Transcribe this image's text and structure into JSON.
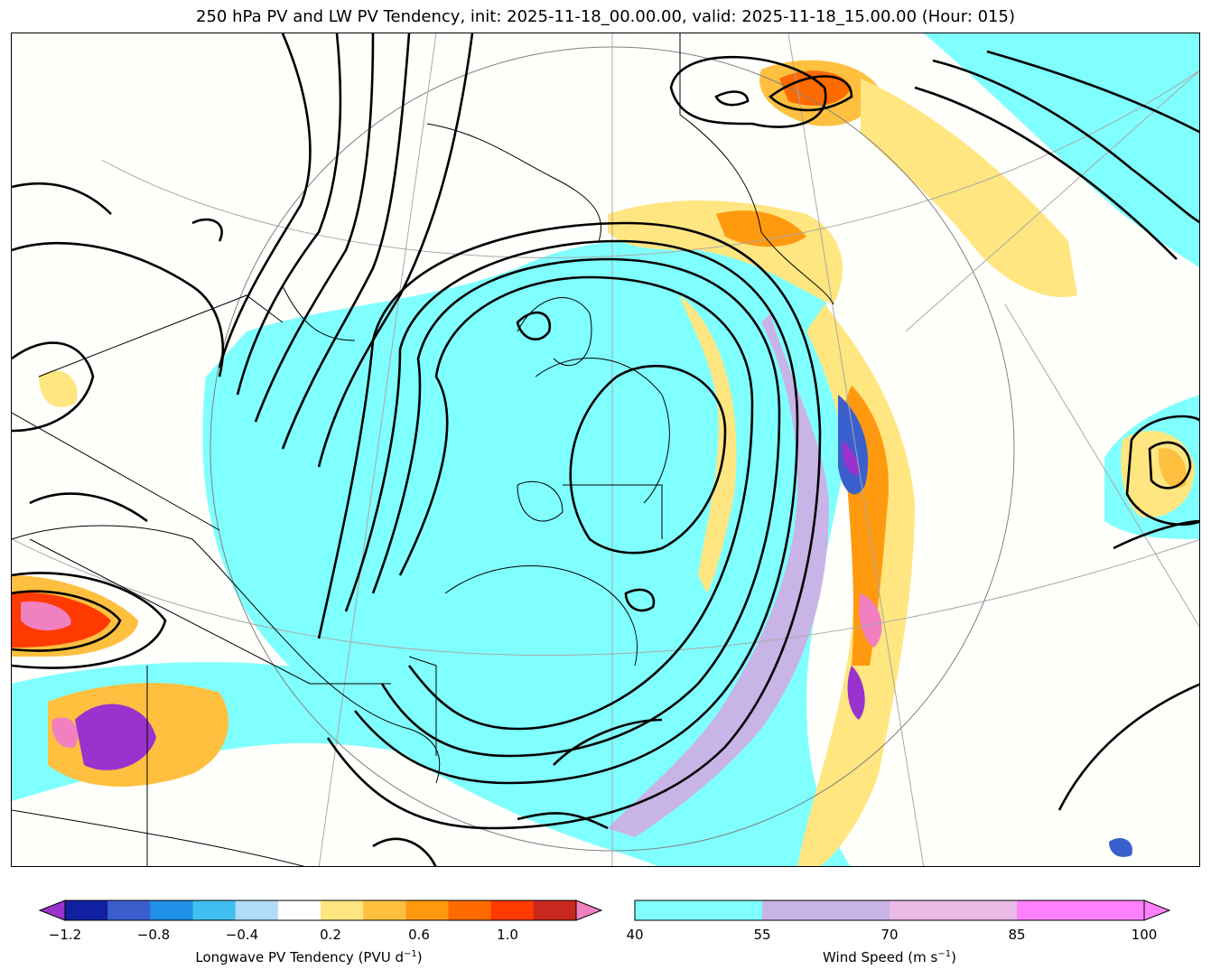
{
  "title": "250 hPa PV and LW PV Tendency, init: 2025-11-18_00.00.00, valid: 2025-11-18_15.00.00 (Hour: 015)",
  "colors": {
    "wind": [
      "#80ffff",
      "#c8b4e6",
      "#ebbae6",
      "#ff80ff"
    ],
    "tendency_neg": [
      "#9a32cd",
      "#1020a0",
      "#3a5fcd",
      "#1e90e8",
      "#40c0f0",
      "#b0dcf8"
    ],
    "tendency_pos": [
      "#ffe680",
      "#ffc040",
      "#ff9a10",
      "#ff6a00",
      "#ff3a00",
      "#c8281e",
      "#f080c0"
    ]
  },
  "colorbar_left": {
    "label": "Longwave PV Tendency (PVU d",
    "label_sup": "−1",
    "label_end": ")",
    "ticks": [
      "−1.2",
      "−0.8",
      "−0.4",
      "0.2",
      "0.6",
      "1.0"
    ],
    "colors": [
      "#1020a0",
      "#3a5fcd",
      "#1e90e8",
      "#40c0f0",
      "#b0dcf8",
      "#ffffff",
      "#ffe680",
      "#ffc040",
      "#ff9a10",
      "#ff6a00",
      "#ff3a00",
      "#c8281e"
    ],
    "under": "#9a32cd",
    "over": "#f080c0"
  },
  "colorbar_right": {
    "label": "Wind Speed (m s",
    "label_sup": "−1",
    "label_end": ")",
    "ticks": [
      "40",
      "55",
      "70",
      "85",
      "100"
    ],
    "colors": [
      "#80ffff",
      "#c8b4e6",
      "#ebbae6",
      "#ff80ff"
    ],
    "over": "#ff80ff"
  }
}
